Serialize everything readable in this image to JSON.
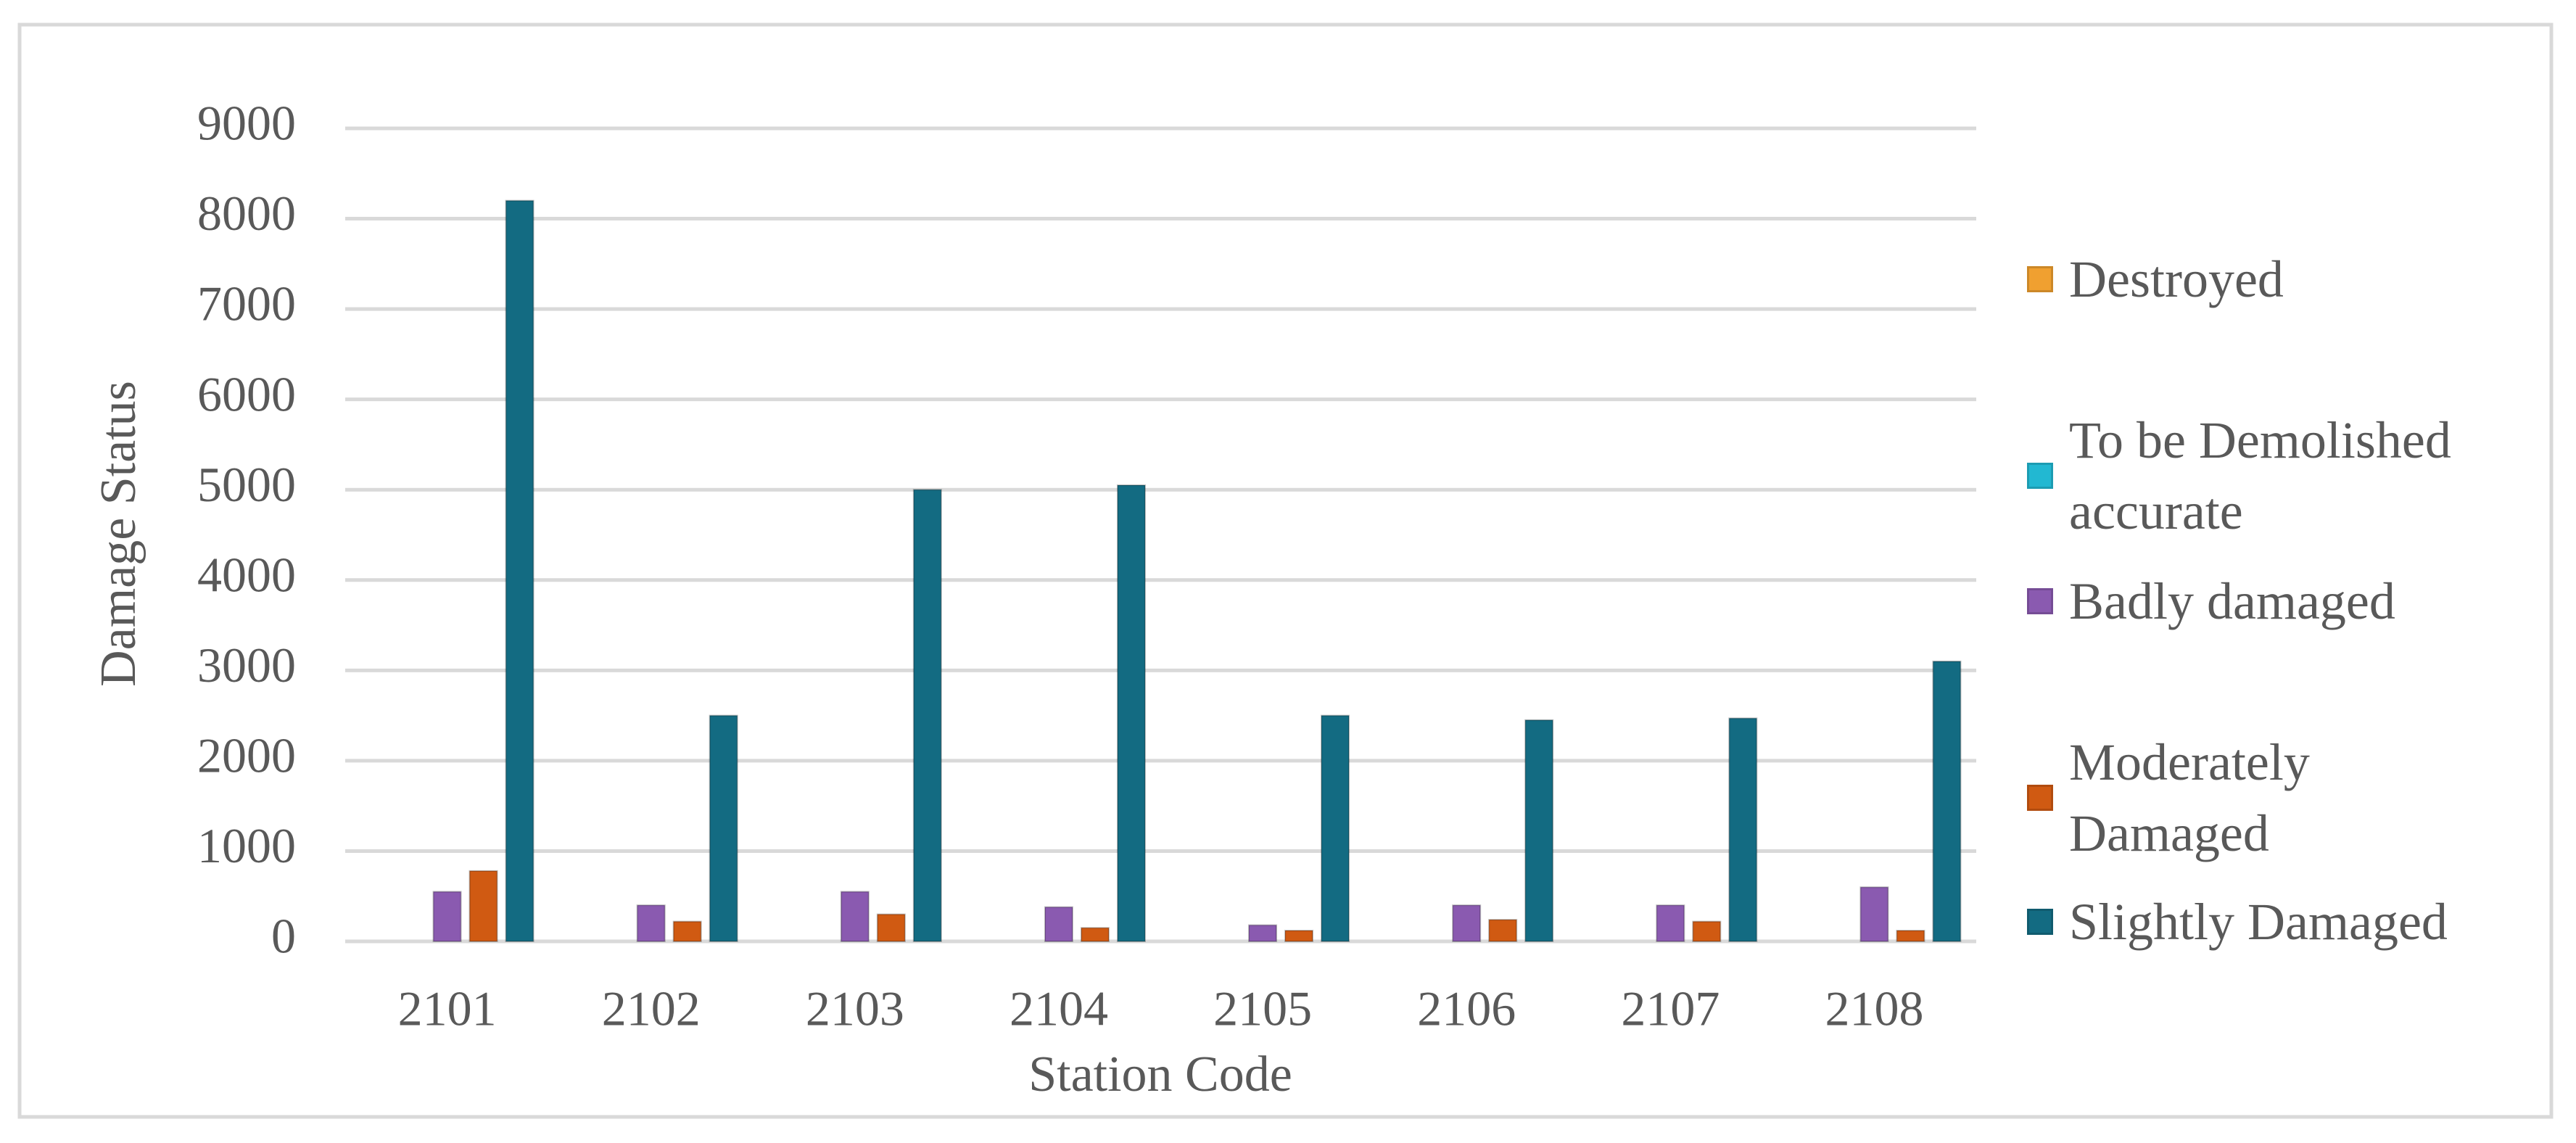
{
  "chart_data": {
    "type": "bar",
    "x_label": "Station Code",
    "y_label": "Damage Status",
    "categories": [
      "2101",
      "2102",
      "2103",
      "2104",
      "2105",
      "2106",
      "2107",
      "2108"
    ],
    "series": [
      {
        "name": "Destroyed",
        "color": "#f0a030",
        "values": [
          0,
          0,
          0,
          0,
          0,
          0,
          0,
          0
        ]
      },
      {
        "name": "To be Demolished accurate",
        "color": "#22b8d2",
        "values": [
          0,
          0,
          0,
          0,
          0,
          0,
          0,
          0
        ]
      },
      {
        "name": "Badly damaged",
        "color": "#8a5ab0",
        "values": [
          550,
          400,
          550,
          380,
          180,
          400,
          400,
          600
        ]
      },
      {
        "name": "Moderately Damaged",
        "color": "#d05a12",
        "values": [
          780,
          220,
          300,
          150,
          120,
          240,
          220,
          120
        ]
      },
      {
        "name": "Slightly Damaged",
        "color": "#136b82",
        "values": [
          8200,
          2500,
          5000,
          5050,
          2500,
          2450,
          2470,
          3100
        ]
      }
    ],
    "ylim": [
      0,
      9000
    ],
    "yticks": [
      0,
      1000,
      2000,
      3000,
      4000,
      5000,
      6000,
      7000,
      8000,
      9000
    ],
    "grid": true,
    "legend": "right"
  }
}
